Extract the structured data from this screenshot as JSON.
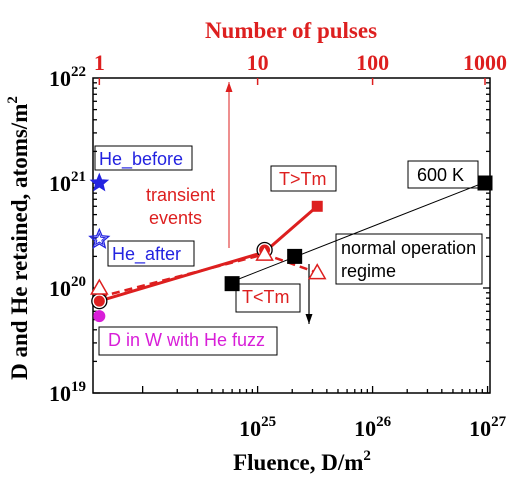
{
  "chart_data": {
    "type": "scatter",
    "xlabel_main": "Fluence, D/m",
    "xlabel_main_sup": "2",
    "xlabel_top": "Number of pulses",
    "ylabel_main": "D and He retained, atoms/m",
    "ylabel_sup": "2",
    "x_scale": "log",
    "y_scale": "log",
    "xlim": [
      3.7e+23,
      1.05e+27
    ],
    "ylim": [
      1e+19,
      1e+22
    ],
    "x_ticks": [
      {
        "value": 1e+25,
        "base": "10",
        "exp": "25"
      },
      {
        "value": 1e+26,
        "base": "10",
        "exp": "26"
      },
      {
        "value": 1e+27,
        "base": "10",
        "exp": "27"
      }
    ],
    "y_ticks": [
      {
        "value": 1e+19,
        "base": "10",
        "exp": "19"
      },
      {
        "value": 1e+20,
        "base": "10",
        "exp": "20"
      },
      {
        "value": 1e+21,
        "base": "10",
        "exp": "21"
      },
      {
        "value": 1e+22,
        "base": "10",
        "exp": "22"
      }
    ],
    "top_ticks": [
      {
        "value": 4.2e+23,
        "label": "1"
      },
      {
        "value": 1e+25,
        "label": "10"
      },
      {
        "value": 1e+26,
        "label": "100"
      },
      {
        "value": 9.5e+26,
        "label": "1000"
      }
    ],
    "grid": false,
    "colors": {
      "red": "#dd1f1f",
      "black": "#000000",
      "blue": "#2323e0",
      "magenta": "#d81ed8",
      "gray": "#888888"
    },
    "series": [
      {
        "marker": "square",
        "color": "#000000",
        "fill": true,
        "points": [
          [
            6e+24,
            1.1e+20
          ],
          [
            2.1e+25,
            2e+20
          ],
          [
            9.5e+26,
            1e+21
          ]
        ],
        "fit_line": [
          [
            6e+24,
            1.15e+20
          ],
          [
            1.02e+27,
            1.05e+21
          ]
        ]
      },
      {
        "marker": "circle",
        "color": "#dd1f1f",
        "fill": true,
        "points": [
          [
            4.2e+23,
            7.5e+19
          ],
          [
            1.15e+25,
            2.3e+20
          ]
        ]
      },
      {
        "marker": "square",
        "color": "#dd1f1f",
        "fill": true,
        "points": [
          [
            3.3e+25,
            6e+20
          ]
        ],
        "line": [
          [
            4.2e+23,
            7.5e+19
          ],
          [
            1.15e+25,
            2.2e+20
          ],
          [
            3.3e+25,
            6e+20
          ]
        ]
      },
      {
        "marker": "triangle",
        "color": "#dd1f1f",
        "fill": false,
        "points": [
          [
            4.2e+23,
            1e+20
          ],
          [
            1.15e+25,
            2.1e+20
          ],
          [
            3.3e+25,
            1.4e+20
          ]
        ],
        "dashed_line": [
          [
            4.2e+23,
            8.2e+19
          ],
          [
            1.15e+25,
            2.1e+20
          ],
          [
            3.3e+25,
            1.4e+20
          ]
        ]
      },
      {
        "marker": "star",
        "color": "#2323e0",
        "fill": true,
        "points": [
          [
            4.2e+23,
            1e+21
          ]
        ]
      },
      {
        "marker": "star-open",
        "color": "#2323e0",
        "fill": false,
        "points": [
          [
            4.2e+23,
            2.9e+20
          ]
        ]
      },
      {
        "marker": "circle",
        "color": "#d81ed8",
        "fill": true,
        "points": [
          [
            4.2e+23,
            5.4e+19
          ]
        ]
      }
    ],
    "annotations": [
      {
        "text": "He_before",
        "color": "#2323e0",
        "box": true
      },
      {
        "text": "He_after",
        "color": "#2323e0",
        "box": true
      },
      {
        "text": "transient",
        "color": "#dd1f1f",
        "box": false
      },
      {
        "text": "events",
        "color": "#dd1f1f",
        "box": false
      },
      {
        "text": "T>Tm",
        "color": "#dd1f1f",
        "box": true
      },
      {
        "text": "T<Tm",
        "color": "#dd1f1f",
        "box": true
      },
      {
        "text": "600 K",
        "color": "#000000",
        "box": true
      },
      {
        "text": "normal operation",
        "color": "#000000",
        "box": true
      },
      {
        "text": "regime",
        "color": "#000000",
        "box": false
      },
      {
        "text": "D in W with He fuzz",
        "color": "#d81ed8",
        "box": true
      }
    ]
  }
}
